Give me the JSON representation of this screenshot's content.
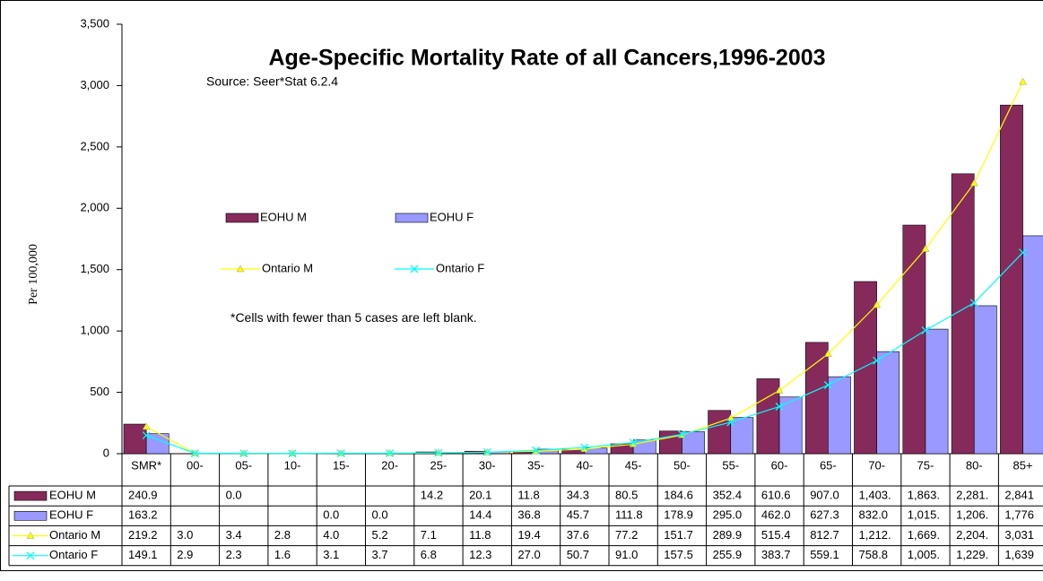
{
  "chart_data": {
    "type": "bar",
    "title": "Age-Specific Mortality Rate of all Cancers,1996-2003",
    "subtitle": "Source: Seer*Stat 6.2.4",
    "annotation": "*Cells with fewer than 5 cases are left blank.",
    "y_label": "Per 100,000",
    "categories": [
      "SMR*",
      "00-",
      "05-",
      "10-",
      "15-",
      "20-",
      "25-",
      "30-",
      "35-",
      "40-",
      "45-",
      "50-",
      "55-",
      "60-",
      "65-",
      "70-",
      "75-",
      "80-",
      "85+"
    ],
    "ylim": [
      0,
      3500
    ],
    "yticks": [
      0,
      500,
      {
        "value": 1000,
        "label": "1,000"
      },
      {
        "value": 1500,
        "label": "1,500"
      },
      {
        "value": 2000,
        "label": "2,000"
      },
      {
        "value": 2500,
        "label": "2,500"
      },
      {
        "value": 3000,
        "label": "3,000"
      },
      {
        "value": 3500,
        "label": "3,500"
      }
    ],
    "grid": false,
    "series": [
      {
        "name": "EOHU M",
        "type": "bar",
        "color": "#862a5c",
        "values": [
          240.9,
          null,
          0,
          null,
          null,
          null,
          14.2,
          20.1,
          11.8,
          34.3,
          80.5,
          184.6,
          352.4,
          610.6,
          907.0,
          1403,
          1863,
          2281,
          2841
        ],
        "value_labels": [
          "240.9",
          null,
          "0.0",
          null,
          null,
          null,
          "14.2",
          "20.1",
          "11.8",
          "34.3",
          "80.5",
          "184.6",
          "352.4",
          "610.6",
          "907.0",
          "1,403.",
          "1,863.",
          "2,281.",
          "2,841"
        ]
      },
      {
        "name": "EOHU F",
        "type": "bar",
        "color": "#9999ff",
        "values": [
          163.2,
          null,
          null,
          null,
          0,
          0,
          null,
          14.4,
          36.8,
          45.7,
          111.8,
          178.9,
          295.0,
          462.0,
          627.3,
          832.0,
          1015,
          1206,
          1776
        ],
        "value_labels": [
          "163.2",
          null,
          null,
          null,
          "0.0",
          "0.0",
          null,
          "14.4",
          "36.8",
          "45.7",
          "111.8",
          "178.9",
          "295.0",
          "462.0",
          "627.3",
          "832.0",
          "1,015.",
          "1,206.",
          "1,776"
        ]
      },
      {
        "name": "Ontario M",
        "type": "line",
        "marker": "triangle",
        "color": "#ffff00",
        "values": [
          219.2,
          3.0,
          3.4,
          2.8,
          4.0,
          5.2,
          7.1,
          11.8,
          19.4,
          37.6,
          77.2,
          151.7,
          289.9,
          515.4,
          812.7,
          1212,
          1669,
          2204,
          3031
        ],
        "value_labels": [
          "219.2",
          "3.0",
          "3.4",
          "2.8",
          "4.0",
          "5.2",
          "7.1",
          "11.8",
          "19.4",
          "37.6",
          "77.2",
          "151.7",
          "289.9",
          "515.4",
          "812.7",
          "1,212.",
          "1,669.",
          "2,204.",
          "3,031"
        ]
      },
      {
        "name": "Ontario F",
        "type": "line",
        "marker": "x",
        "color": "#00ffff",
        "values": [
          149.1,
          2.9,
          2.3,
          1.6,
          3.1,
          3.7,
          6.8,
          12.3,
          27.0,
          50.7,
          91.0,
          157.5,
          255.9,
          383.7,
          559.1,
          758.8,
          1005,
          1229,
          1639
        ],
        "value_labels": [
          "149.1",
          "2.9",
          "2.3",
          "1.6",
          "3.1",
          "3.7",
          "6.8",
          "12.3",
          "27.0",
          "50.7",
          "91.0",
          "157.5",
          "255.9",
          "383.7",
          "559.1",
          "758.8",
          "1,005.",
          "1,229.",
          "1,639"
        ]
      }
    ]
  }
}
